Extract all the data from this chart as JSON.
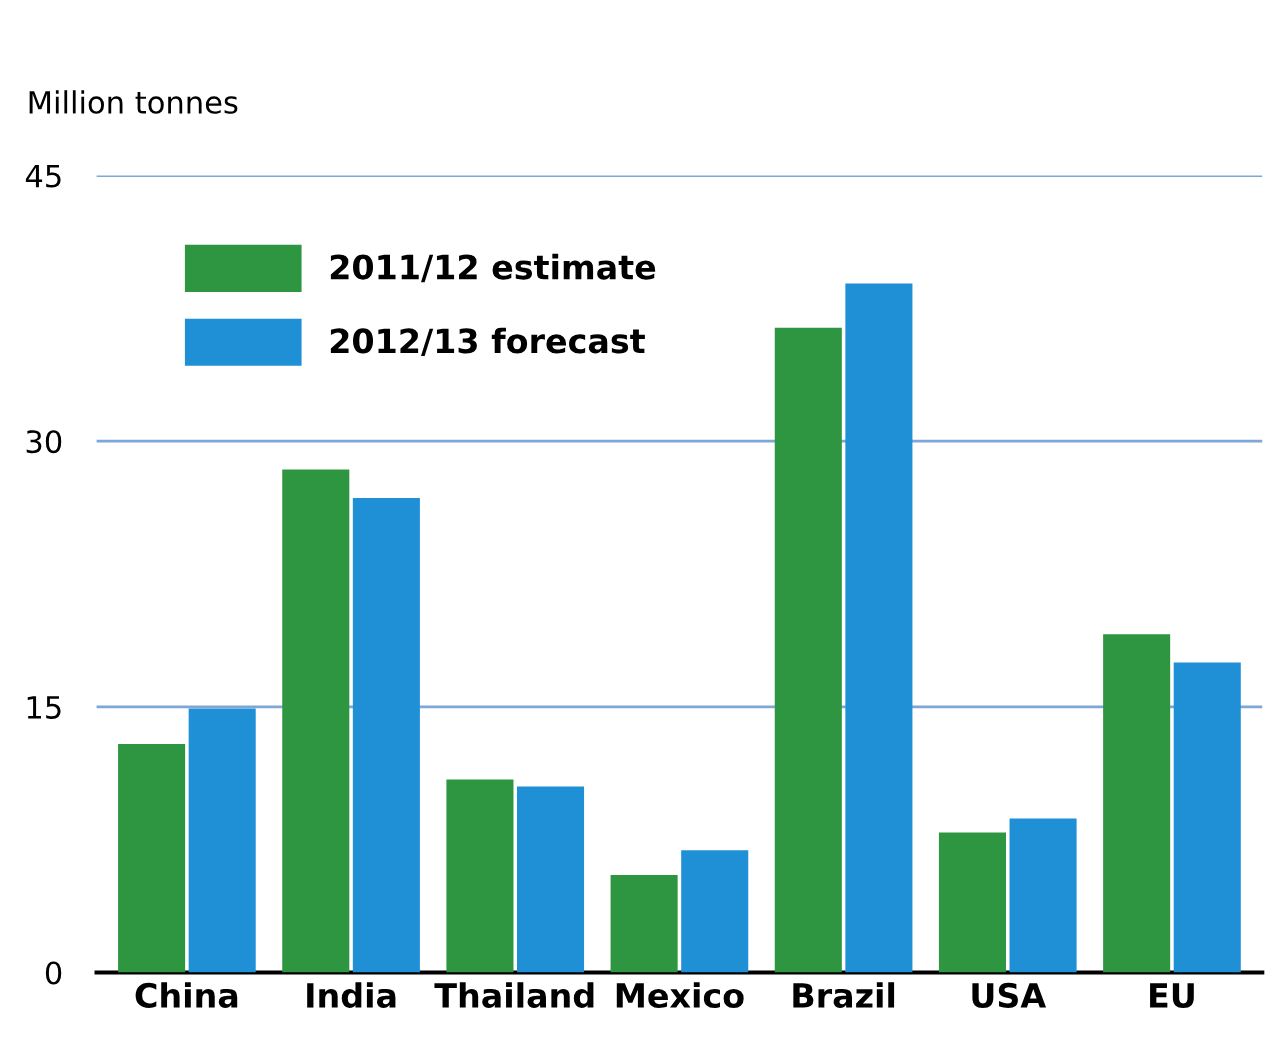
{
  "chart_data": {
    "type": "bar",
    "ylabel": "Million tonnes",
    "categories": [
      "China",
      "India",
      "Thailand",
      "Mexico",
      "Brazil",
      "USA",
      "EU"
    ],
    "series": [
      {
        "name": "2011/12 estimate",
        "color": "#2e9640",
        "values": [
          12.9,
          28.4,
          10.9,
          5.5,
          36.4,
          7.9,
          19.1
        ]
      },
      {
        "name": "2012/13 forecast",
        "color": "#1f8fd6",
        "values": [
          14.9,
          26.8,
          10.5,
          6.9,
          38.9,
          8.7,
          17.5
        ]
      }
    ],
    "ylim": [
      0,
      45
    ],
    "yticks": [
      0,
      15,
      30,
      45
    ],
    "grid": "y",
    "legend": "top left"
  }
}
